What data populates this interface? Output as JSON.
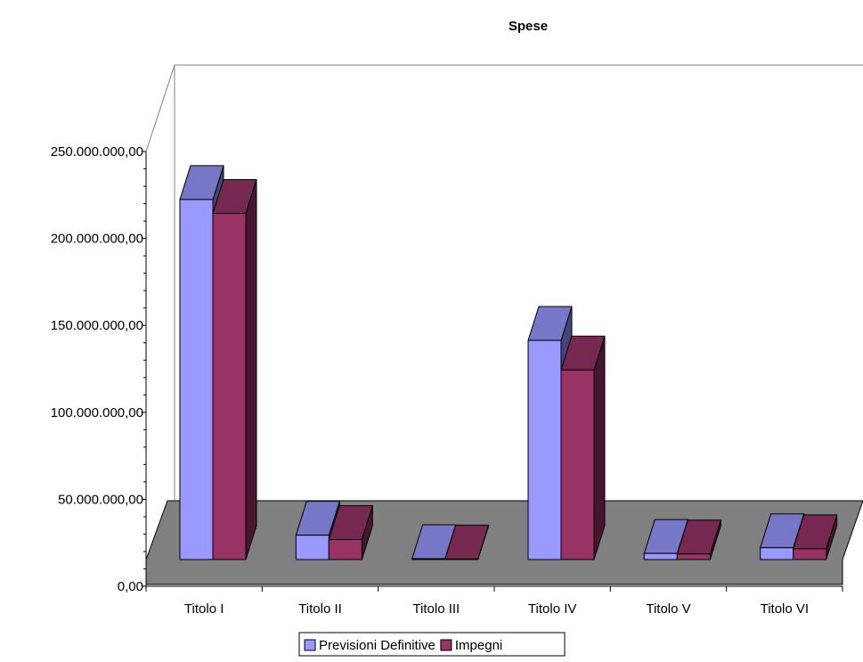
{
  "chart_data": {
    "type": "bar",
    "title": "Spese",
    "categories": [
      "Titolo I",
      "Titolo II",
      "Titolo III",
      "Titolo IV",
      "Titolo V",
      "Titolo VI"
    ],
    "series": [
      {
        "name": "Previsioni Definitive",
        "values": [
          207000000,
          14000000,
          500000,
          126000000,
          3500000,
          6800000
        ],
        "color": "#9999ff"
      },
      {
        "name": "Impegni",
        "values": [
          199000000,
          11500000,
          300000,
          109000000,
          3200000,
          6200000
        ],
        "color": "#993366"
      }
    ],
    "yaxis": {
      "ticks": [
        "0,00",
        "50.000.000,00",
        "100.000.000,00",
        "150.000.000,00",
        "200.000.000,00",
        "250.000.000,00"
      ],
      "ylim": [
        0,
        250000000
      ]
    },
    "legend": {
      "position": "bottom",
      "labels": [
        "Previsioni Definitive",
        "Impegni"
      ]
    },
    "style": "3d-clustered-column"
  }
}
